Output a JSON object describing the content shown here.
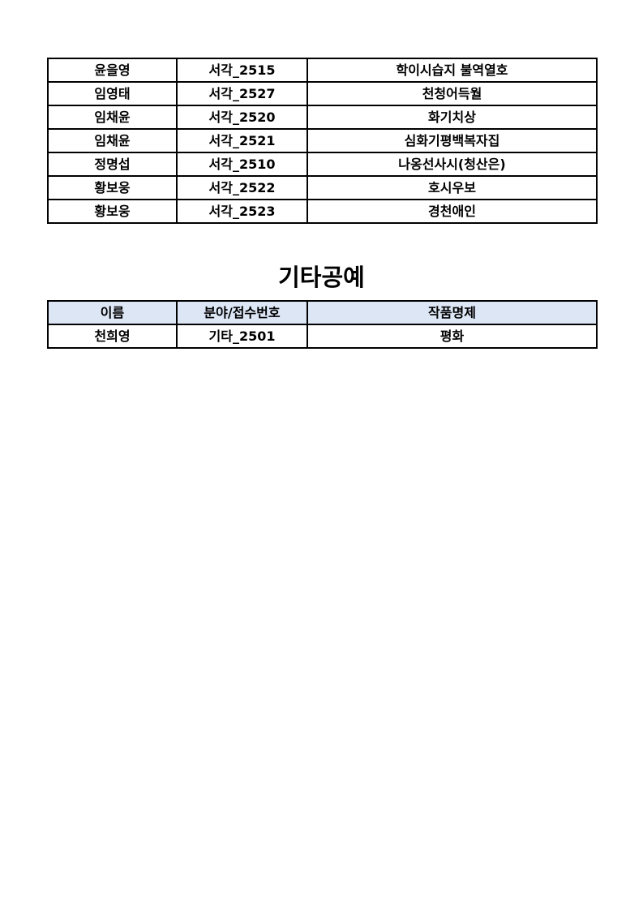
{
  "table1": {
    "rows": [
      [
        "윤을영",
        "서각_2515",
        "학이시습지 불역열호"
      ],
      [
        "임영태",
        "서각_2527",
        "천청어득월"
      ],
      [
        "임채윤",
        "서각_2520",
        "화기치상"
      ],
      [
        "임채윤",
        "서각_2521",
        "심화기평백복자집"
      ],
      [
        "정명섭",
        "서각_2510",
        "나옹선사시(청산은)"
      ],
      [
        "황보웅",
        "서각_2522",
        "호시우보"
      ],
      [
        "황보웅",
        "서각_2523",
        "경천애인"
      ]
    ]
  },
  "section2": {
    "title": "기타공예",
    "headers": [
      "이름",
      "분야/접수번호",
      "작품명제"
    ],
    "rows": [
      [
        "천희영",
        "기타_2501",
        "평화"
      ]
    ],
    "header_bg": "#dce6f5"
  }
}
